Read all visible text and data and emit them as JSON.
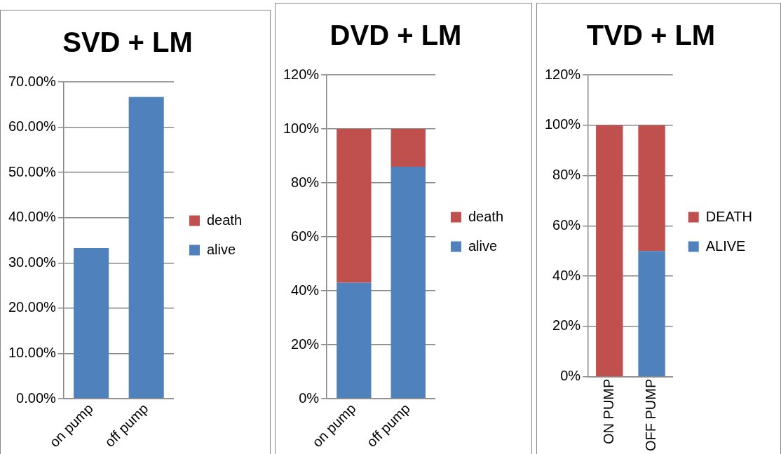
{
  "chart_data": [
    {
      "type": "bar",
      "title": "SVD + LM",
      "categories": [
        "on pump",
        "off pump"
      ],
      "stacked": true,
      "legend": "right",
      "grid": "y",
      "series": [
        {
          "name": "alive",
          "color": "#4f81bd",
          "values": [
            33.3,
            66.7
          ]
        },
        {
          "name": "death",
          "color": "#c0504d",
          "values": [
            0,
            0
          ]
        }
      ],
      "ylim": [
        0,
        70
      ],
      "yticks": [
        {
          "value": 0,
          "label": "0.00%"
        },
        {
          "value": 10,
          "label": "10.00%"
        },
        {
          "value": 20,
          "label": "20.00%"
        },
        {
          "value": 30,
          "label": "30.00%"
        },
        {
          "value": 40,
          "label": "40.00%"
        },
        {
          "value": 50,
          "label": "50.00%"
        },
        {
          "value": 60,
          "label": "60.00%"
        },
        {
          "value": 70,
          "label": "70.00%"
        }
      ]
    },
    {
      "type": "bar",
      "title": "DVD + LM",
      "categories": [
        "on pump",
        "off pump"
      ],
      "stacked": true,
      "legend": "right",
      "grid": "y",
      "series": [
        {
          "name": "alive",
          "color": "#4f81bd",
          "values": [
            43,
            86
          ]
        },
        {
          "name": "death",
          "color": "#c0504d",
          "values": [
            57,
            14
          ]
        }
      ],
      "ylim": [
        0,
        120
      ],
      "yticks": [
        {
          "value": 0,
          "label": "0%"
        },
        {
          "value": 20,
          "label": "20%"
        },
        {
          "value": 40,
          "label": "40%"
        },
        {
          "value": 60,
          "label": "60%"
        },
        {
          "value": 80,
          "label": "80%"
        },
        {
          "value": 100,
          "label": "100%"
        },
        {
          "value": 120,
          "label": "120%"
        }
      ]
    },
    {
      "type": "bar",
      "title": "TVD + LM",
      "categories": [
        "ON PUMP",
        "OFF PUMP"
      ],
      "stacked": true,
      "legend": "right",
      "grid": "y",
      "series": [
        {
          "name": "ALIVE",
          "color": "#4f81bd",
          "values": [
            0,
            50
          ]
        },
        {
          "name": "DEATH",
          "color": "#c0504d",
          "values": [
            100,
            50
          ]
        }
      ],
      "ylim": [
        0,
        120
      ],
      "yticks": [
        {
          "value": 0,
          "label": "0%"
        },
        {
          "value": 20,
          "label": "20%"
        },
        {
          "value": 40,
          "label": "40%"
        },
        {
          "value": 60,
          "label": "60%"
        },
        {
          "value": 80,
          "label": "80%"
        },
        {
          "value": 100,
          "label": "100%"
        },
        {
          "value": 120,
          "label": "120%"
        }
      ]
    }
  ]
}
